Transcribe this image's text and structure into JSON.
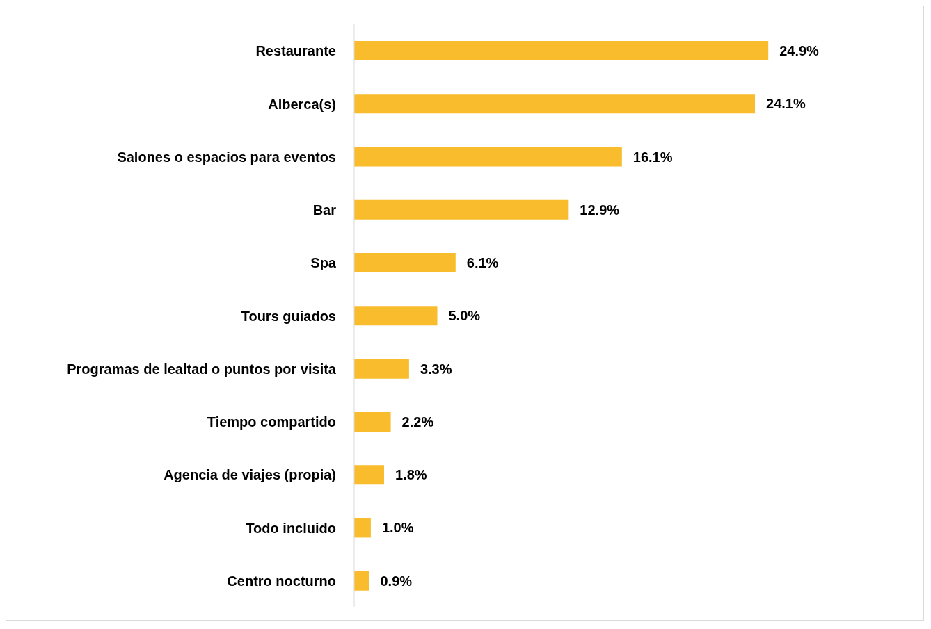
{
  "chart_data": {
    "type": "bar",
    "orientation": "horizontal",
    "categories": [
      "Restaurante",
      "Alberca(s)",
      "Salones o espacios para eventos",
      "Bar",
      "Spa",
      "Tours guiados",
      "Programas de lealtad o puntos por visita",
      "Tiempo compartido",
      "Agencia de viajes (propia)",
      "Todo incluido",
      "Centro nocturno"
    ],
    "values": [
      24.9,
      24.1,
      16.1,
      12.9,
      6.1,
      5.0,
      3.3,
      2.2,
      1.8,
      1.0,
      0.9
    ],
    "value_labels": [
      "24.9%",
      "24.1%",
      "16.1%",
      "12.9%",
      "6.1%",
      "5.0%",
      "3.3%",
      "2.2%",
      "1.8%",
      "1.0%",
      "0.9%"
    ],
    "color": "#f9bc2c",
    "grid": false,
    "legend": false
  }
}
